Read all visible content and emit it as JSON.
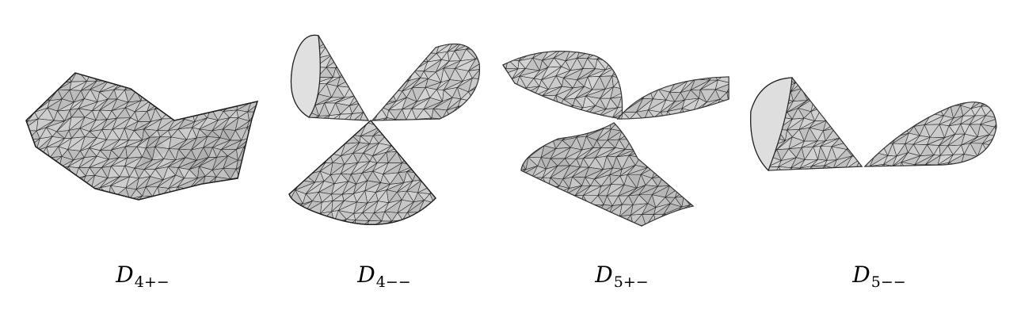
{
  "figure": {
    "panels": [
      {
        "symbol": "D",
        "subscript": "4+−",
        "surface": "saddle-surface"
      },
      {
        "symbol": "D",
        "subscript": "4−−",
        "surface": "three-cone-surface"
      },
      {
        "symbol": "D",
        "subscript": "5+−",
        "surface": "twisted-surface"
      },
      {
        "symbol": "D",
        "subscript": "5−−",
        "surface": "two-cone-surface"
      }
    ],
    "colors": {
      "surface": "#c4c4c4",
      "surface_light": "#dadada",
      "surface_dark": "#a9a9a9",
      "mesh": "#2a2a2a"
    }
  }
}
